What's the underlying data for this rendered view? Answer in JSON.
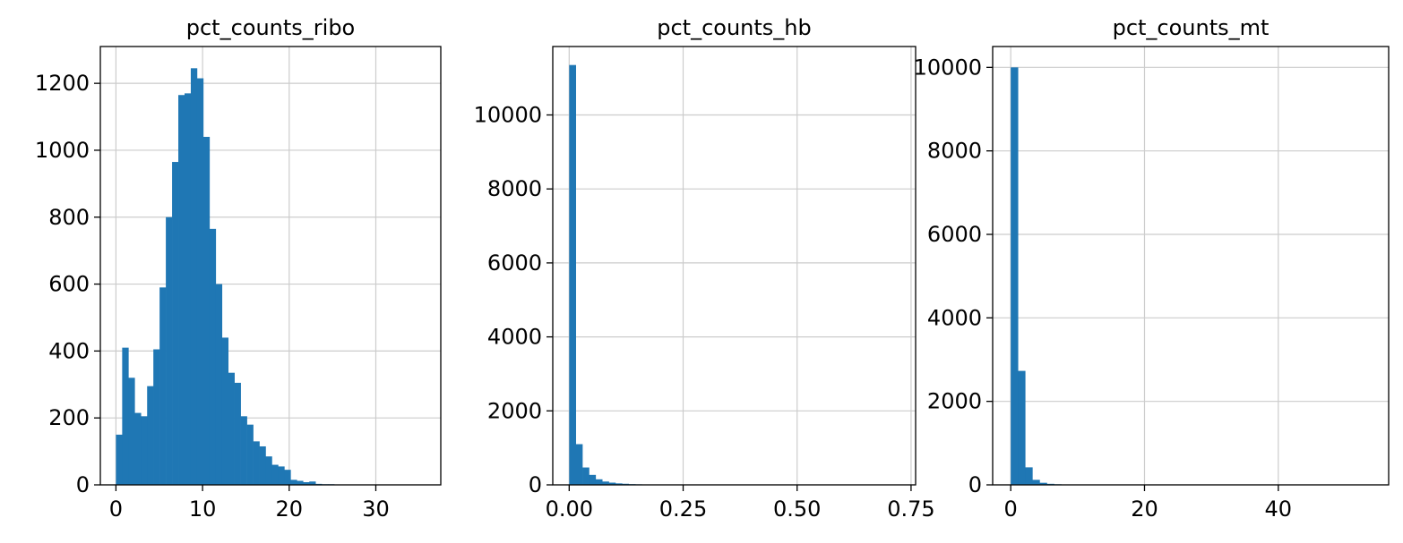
{
  "chart_data": [
    {
      "type": "bar",
      "title": "pct_counts_ribo",
      "xlim": [
        -1.8,
        37.5
      ],
      "ylim": [
        0,
        1310
      ],
      "xticks": [
        0,
        10,
        20,
        30
      ],
      "yticks": [
        0,
        200,
        400,
        600,
        800,
        1000,
        1200
      ],
      "grid": true,
      "bin_width": 0.72,
      "bins_start": [
        0.0,
        0.72,
        1.44,
        2.16,
        2.88,
        3.6,
        4.32,
        5.04,
        5.76,
        6.48,
        7.2,
        7.92,
        8.64,
        9.36,
        10.08,
        10.8,
        11.52,
        12.24,
        12.96,
        13.68,
        14.4,
        15.12,
        15.84,
        16.56,
        17.28,
        18.0,
        18.72,
        19.44,
        20.16,
        20.88,
        21.6,
        22.32,
        23.04,
        23.76,
        24.48,
        25.2,
        25.92,
        26.64,
        27.36,
        28.08,
        28.8,
        29.52,
        30.24,
        30.96,
        31.68,
        32.4,
        33.12,
        33.84,
        34.56,
        35.28
      ],
      "values": [
        150,
        410,
        320,
        215,
        205,
        295,
        405,
        590,
        800,
        965,
        1165,
        1170,
        1245,
        1215,
        1040,
        765,
        600,
        440,
        335,
        305,
        205,
        180,
        130,
        115,
        85,
        60,
        55,
        45,
        15,
        12,
        8,
        10,
        3,
        2,
        2,
        1,
        1,
        1,
        1,
        1,
        1,
        1,
        1,
        1,
        1,
        1,
        1,
        1,
        1,
        1
      ]
    },
    {
      "type": "bar",
      "title": "pct_counts_hb",
      "xlim": [
        -0.036,
        0.76
      ],
      "ylim": [
        0,
        11850
      ],
      "xticks": [
        0.0,
        0.25,
        0.5,
        0.75
      ],
      "xticklabels": [
        "0.00",
        "0.25",
        "0.50",
        "0.75"
      ],
      "yticks": [
        0,
        2000,
        4000,
        6000,
        8000,
        10000
      ],
      "grid": true,
      "bin_width": 0.0145,
      "bins_start": [
        0.0,
        0.0145,
        0.029,
        0.0435,
        0.058,
        0.0725,
        0.087,
        0.1015,
        0.116,
        0.1305,
        0.145,
        0.1595,
        0.174,
        0.1885,
        0.203,
        0.2175,
        0.232,
        0.2465,
        0.261,
        0.2755,
        0.29,
        0.3045,
        0.319,
        0.3335,
        0.348,
        0.3625,
        0.377,
        0.3915,
        0.406,
        0.4205,
        0.435,
        0.4495,
        0.464,
        0.4785,
        0.493,
        0.5075,
        0.522,
        0.5365,
        0.551,
        0.5655,
        0.58,
        0.5945,
        0.609,
        0.6235,
        0.638,
        0.6525,
        0.667,
        0.6815,
        0.696,
        0.7105
      ],
      "values": [
        11350,
        1100,
        470,
        270,
        150,
        90,
        60,
        40,
        30,
        20,
        15,
        12,
        10,
        8,
        6,
        5,
        4,
        3,
        3,
        2,
        2,
        2,
        1,
        1,
        1,
        1,
        1,
        1,
        1,
        1,
        1,
        1,
        1,
        1,
        1,
        1,
        1,
        1,
        1,
        1,
        1,
        1,
        1,
        1,
        1,
        1,
        1,
        1,
        1,
        1
      ]
    },
    {
      "type": "bar",
      "title": "pct_counts_mt",
      "xlim": [
        -2.7,
        56.5
      ],
      "ylim": [
        0,
        10500
      ],
      "xticks": [
        0,
        20,
        40
      ],
      "yticks": [
        0,
        2000,
        4000,
        6000,
        8000,
        10000
      ],
      "grid": true,
      "bin_width": 1.08,
      "bins_start": [
        0.0,
        1.08,
        2.16,
        3.24,
        4.32,
        5.4,
        6.48,
        7.56,
        8.64,
        9.72,
        10.8,
        11.88,
        12.96,
        14.04,
        15.12,
        16.2,
        17.28,
        18.36,
        19.44,
        20.52,
        21.6,
        22.68,
        23.76,
        24.84,
        25.92,
        27.0,
        28.08,
        29.16,
        30.24,
        31.32,
        32.4,
        33.48,
        34.56,
        35.64,
        36.72,
        37.8,
        38.88,
        39.96,
        41.04,
        42.12,
        43.2,
        44.28,
        45.36,
        46.44,
        47.52,
        48.6,
        49.68,
        50.76,
        51.84,
        52.92
      ],
      "values": [
        10000,
        2730,
        420,
        120,
        50,
        25,
        15,
        10,
        8,
        6,
        5,
        4,
        3,
        3,
        2,
        2,
        2,
        1,
        1,
        1,
        1,
        1,
        1,
        1,
        1,
        1,
        1,
        1,
        1,
        1,
        1,
        1,
        1,
        1,
        1,
        1,
        1,
        1,
        1,
        1,
        1,
        1,
        1,
        1,
        1,
        1,
        1,
        1,
        1,
        1
      ]
    }
  ],
  "colors": {
    "bar": "#1f77b4",
    "grid": "#cccccc",
    "axis": "#000000"
  }
}
